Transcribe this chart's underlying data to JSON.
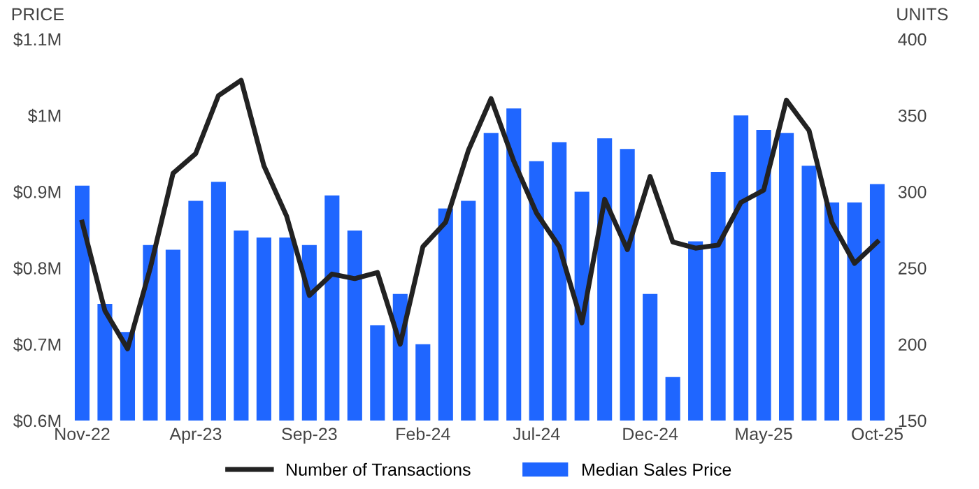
{
  "chart_data": {
    "type": "bar",
    "ylabel": "PRICE",
    "y2label": "UNITS",
    "categories": [
      "Nov-22",
      null,
      null,
      null,
      null,
      "Apr-23",
      null,
      null,
      null,
      null,
      "Sep-23",
      null,
      null,
      null,
      null,
      "Feb-24",
      null,
      null,
      null,
      null,
      "Jul-24",
      null,
      null,
      null,
      null,
      "Dec-24",
      null,
      null,
      null,
      null,
      "May-25",
      null,
      null,
      null,
      null,
      "Oct-25"
    ],
    "series": [
      {
        "name": "Median Sales Price",
        "color": "#1f66ff",
        "values": [
          0.908,
          0.753,
          0.716,
          0.83,
          0.824,
          0.888,
          0.913,
          0.849,
          0.84,
          0.84,
          0.83,
          0.895,
          0.849,
          0.725,
          0.766,
          0.7,
          0.878,
          0.888,
          0.977,
          1.009,
          0.94,
          0.965,
          0.9,
          0.97,
          0.956,
          0.766,
          0.657,
          0.835,
          0.926,
          1.0,
          0.981,
          0.977,
          0.934,
          0.886,
          0.886,
          0.91
        ]
      },
      {
        "name": "Number of Transactions",
        "type": "line",
        "axis": "y2",
        "color": "#222222",
        "values": [
          280,
          222,
          197,
          250,
          312,
          325,
          363,
          373,
          317,
          284,
          232,
          246,
          243,
          247,
          200,
          264,
          280,
          327,
          361,
          320,
          286,
          264,
          214,
          295,
          262,
          310,
          267,
          263,
          265,
          293,
          301,
          360,
          340,
          280,
          253,
          267
        ]
      }
    ],
    "ylim": [
      0.6,
      1.1
    ],
    "yticks": [
      {
        "value": 0.6,
        "label": "$0.6M"
      },
      {
        "value": 0.7,
        "label": "$0.7M"
      },
      {
        "value": 0.8,
        "label": "$0.8M"
      },
      {
        "value": 0.9,
        "label": "$0.9M"
      },
      {
        "value": 1.0,
        "label": "$1M"
      },
      {
        "value": 1.1,
        "label": "$1.1M"
      }
    ],
    "y2lim": [
      150,
      400
    ],
    "y2ticks": [
      150,
      200,
      250,
      300,
      350,
      400
    ],
    "legend": "bottom",
    "grid": false,
    "marker": "none",
    "line_style": "solid"
  }
}
